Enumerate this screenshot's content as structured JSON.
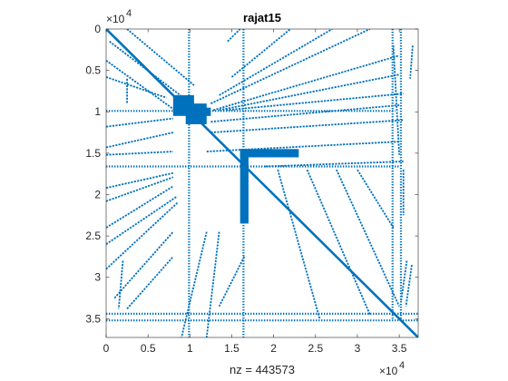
{
  "chart_data": {
    "type": "scatter",
    "title": "rajat15",
    "xlabel": "nz = 443573",
    "ylabel": "",
    "matrix_size": 37261,
    "xlim": [
      0,
      37261
    ],
    "ylim": [
      0,
      37261
    ],
    "y_reversed": true,
    "axis_scale_multiplier": "×10",
    "axis_scale_exponent": "4",
    "x_ticks": [
      0,
      5000,
      10000,
      15000,
      20000,
      25000,
      30000,
      35000
    ],
    "x_tick_labels": [
      "0",
      "0.5",
      "1",
      "1.5",
      "2",
      "2.5",
      "3",
      "3.5"
    ],
    "y_ticks": [
      0,
      5000,
      10000,
      15000,
      20000,
      25000,
      30000,
      35000
    ],
    "y_tick_labels": [
      "0",
      "0.5",
      "1",
      "1.5",
      "2",
      "2.5",
      "3",
      "3.5"
    ],
    "marker_color": "#0072BD",
    "grid": false,
    "nonzeros": 443573,
    "structure": {
      "diagonal": [
        [
          0,
          0
        ],
        [
          37261,
          37261
        ]
      ],
      "dense_blocks": [
        {
          "x": [
            8000,
            10500
          ],
          "y": [
            8000,
            10500
          ]
        },
        {
          "x": [
            9500,
            12000
          ],
          "y": [
            9000,
            11500
          ]
        },
        {
          "x": [
            10500,
            12500
          ],
          "y": [
            9500,
            10500
          ]
        },
        {
          "x": [
            16000,
            17000
          ],
          "y": [
            14500,
            23500
          ]
        },
        {
          "x": [
            16000,
            23000
          ],
          "y": [
            14500,
            15500
          ]
        }
      ],
      "horizontal_bands": [
        {
          "y": 9900,
          "x": [
            0,
            34500
          ]
        },
        {
          "y": 16600,
          "x": [
            0,
            35000
          ]
        },
        {
          "y": 34400,
          "x": [
            0,
            37261
          ]
        },
        {
          "y": 35200,
          "x": [
            0,
            37261
          ]
        }
      ],
      "vertical_bands": [
        {
          "x": 9900,
          "y": [
            0,
            37261
          ]
        },
        {
          "x": 16400,
          "y": [
            0,
            37261
          ]
        },
        {
          "x": 34200,
          "y": [
            0,
            35000
          ]
        },
        {
          "x": 35200,
          "y": [
            0,
            35000
          ]
        }
      ],
      "fan_segments": [
        [
          [
            12800,
            9800
          ],
          [
            35000,
            3200
          ]
        ],
        [
          [
            13500,
            9800
          ],
          [
            35000,
            5500
          ]
        ],
        [
          [
            14300,
            9800
          ],
          [
            35500,
            7800
          ]
        ],
        [
          [
            12500,
            11200
          ],
          [
            35000,
            9200
          ]
        ],
        [
          [
            12500,
            12500
          ],
          [
            35500,
            11000
          ]
        ],
        [
          [
            12000,
            14800
          ],
          [
            35000,
            13600
          ]
        ],
        [
          [
            19000,
            16600
          ],
          [
            35500,
            16000
          ]
        ],
        [
          [
            12500,
            9000
          ],
          [
            31500,
            0
          ]
        ],
        [
          [
            13500,
            8000
          ],
          [
            27000,
            0
          ]
        ],
        [
          [
            15000,
            5800
          ],
          [
            22000,
            0
          ]
        ],
        [
          [
            14500,
            1500
          ],
          [
            16000,
            0
          ]
        ],
        [
          [
            2500,
            0
          ],
          [
            10500,
            6800
          ]
        ],
        [
          [
            400,
            1500
          ],
          [
            9500,
            8500
          ]
        ],
        [
          [
            0,
            3800
          ],
          [
            8200,
            9800
          ]
        ],
        [
          [
            0,
            5800
          ],
          [
            7200,
            8300
          ]
        ],
        [
          [
            0,
            11800
          ],
          [
            8000,
            10800
          ]
        ],
        [
          [
            0,
            14300
          ],
          [
            8000,
            12500
          ]
        ],
        [
          [
            0,
            15200
          ],
          [
            8000,
            14800
          ]
        ],
        [
          [
            0,
            19200
          ],
          [
            8000,
            17400
          ]
        ],
        [
          [
            0,
            20800
          ],
          [
            8000,
            17900
          ]
        ],
        [
          [
            0,
            24000
          ],
          [
            8000,
            19000
          ]
        ],
        [
          [
            0,
            26000
          ],
          [
            8500,
            20200
          ]
        ],
        [
          [
            0,
            29000
          ],
          [
            8500,
            21000
          ]
        ],
        [
          [
            1000,
            32500
          ],
          [
            8000,
            24500
          ]
        ],
        [
          [
            2500,
            33800
          ],
          [
            8000,
            27500
          ]
        ],
        [
          [
            12000,
            24500
          ],
          [
            9000,
            37261
          ]
        ],
        [
          [
            13500,
            24500
          ],
          [
            12000,
            37261
          ]
        ],
        [
          [
            16500,
            27500
          ],
          [
            13500,
            33500
          ]
        ],
        [
          [
            20500,
            17000
          ],
          [
            25500,
            35000
          ]
        ],
        [
          [
            24000,
            17000
          ],
          [
            31500,
            34500
          ]
        ],
        [
          [
            27500,
            17000
          ],
          [
            35000,
            33500
          ]
        ],
        [
          [
            30000,
            17000
          ],
          [
            34300,
            24000
          ]
        ],
        [
          [
            35500,
            17000
          ],
          [
            35500,
            22500
          ]
        ],
        [
          [
            34300,
            2000
          ],
          [
            35000,
            15200
          ]
        ],
        [
          [
            36500,
            28500
          ],
          [
            35800,
            33500
          ]
        ],
        [
          [
            36600,
            2000
          ],
          [
            36300,
            6000
          ]
        ],
        [
          [
            35900,
            28000
          ],
          [
            35200,
            33000
          ]
        ],
        [
          [
            2500,
            6000
          ],
          [
            2500,
            9000
          ]
        ],
        [
          [
            2000,
            28000
          ],
          [
            1500,
            33800
          ]
        ]
      ]
    }
  }
}
